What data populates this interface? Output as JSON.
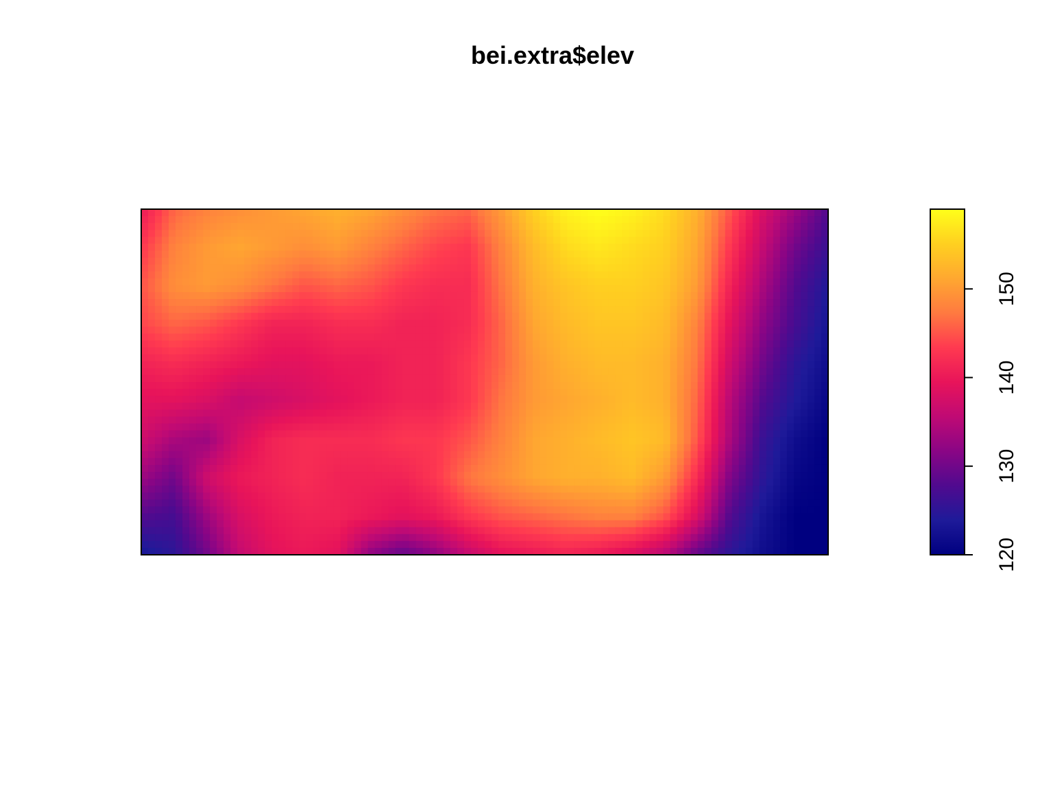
{
  "chart_data": {
    "type": "heatmap",
    "title": "bei.extra$elev",
    "xlabel": "",
    "ylabel": "",
    "grid": false,
    "legend": "right",
    "colorbar": {
      "range": [
        120,
        159
      ],
      "ticks": [
        120,
        130,
        140,
        150
      ],
      "tick_labels": [
        "120",
        "130",
        "140",
        "150"
      ],
      "palette": [
        "#000080",
        "#1E1A99",
        "#500A8F",
        "#8A0585",
        "#C00A74",
        "#E8145A",
        "#FF3A50",
        "#FF7A40",
        "#FFA830",
        "#FFD020",
        "#FFFF1A"
      ]
    },
    "grid_values": [
      [
        140,
        146,
        148,
        149,
        150,
        151,
        152,
        151,
        149,
        147,
        146,
        150,
        155,
        158,
        159,
        158,
        156,
        152,
        145,
        138,
        133,
        128
      ],
      [
        143,
        148,
        150,
        151,
        150,
        149,
        150,
        148,
        146,
        144,
        143,
        148,
        153,
        156,
        157,
        156,
        155,
        151,
        143,
        136,
        130,
        126
      ],
      [
        145,
        149,
        150,
        149,
        147,
        145,
        146,
        145,
        143,
        142,
        142,
        147,
        152,
        154,
        155,
        155,
        154,
        150,
        141,
        134,
        128,
        124
      ],
      [
        144,
        146,
        145,
        143,
        141,
        141,
        142,
        142,
        141,
        141,
        142,
        146,
        151,
        153,
        154,
        154,
        153,
        148,
        139,
        132,
        127,
        123
      ],
      [
        141,
        142,
        141,
        140,
        139,
        139,
        140,
        140,
        141,
        141,
        143,
        146,
        150,
        152,
        153,
        153,
        152,
        147,
        137,
        130,
        125,
        122
      ],
      [
        139,
        139,
        138,
        136,
        137,
        138,
        139,
        140,
        141,
        141,
        143,
        147,
        150,
        151,
        152,
        153,
        152,
        146,
        135,
        128,
        124,
        121
      ],
      [
        137,
        134,
        133,
        138,
        141,
        142,
        142,
        142,
        143,
        143,
        145,
        148,
        151,
        152,
        153,
        154,
        153,
        145,
        134,
        126,
        122,
        120
      ],
      [
        133,
        130,
        137,
        140,
        141,
        142,
        141,
        141,
        141,
        143,
        147,
        149,
        151,
        152,
        152,
        153,
        150,
        142,
        131,
        125,
        121,
        120
      ],
      [
        128,
        127,
        133,
        138,
        140,
        141,
        141,
        140,
        139,
        140,
        143,
        145,
        146,
        147,
        148,
        148,
        145,
        138,
        128,
        123,
        120,
        120
      ],
      [
        123,
        125,
        130,
        136,
        139,
        140,
        139,
        132,
        129,
        132,
        136,
        139,
        140,
        141,
        140,
        138,
        135,
        129,
        125,
        122,
        120,
        120
      ]
    ]
  }
}
